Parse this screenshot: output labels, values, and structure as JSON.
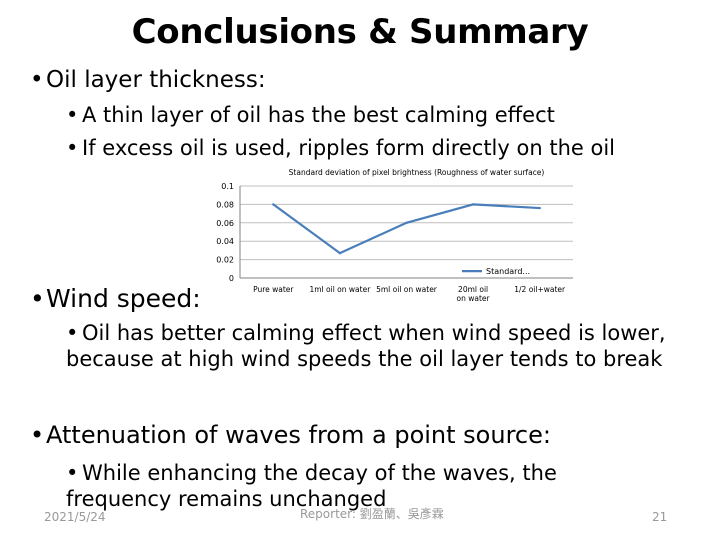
{
  "slide": {
    "title": "Conclusions & Summary",
    "bullets": {
      "oil_layer": "Oil layer thickness:",
      "thin_layer": "A thin layer of oil has the best calming effect",
      "excess_oil": "If excess oil is used, ripples form directly on the oil",
      "wind_speed": "Wind speed:",
      "calming": "Oil has better calming effect when wind speed is lower, because at high wind speeds the oil layer tends to break",
      "attenuation": "Attenuation of waves from a point source:",
      "decay": "While enhancing the decay of the waves, the frequency remains unchanged"
    },
    "bullet_glyph": "•",
    "footer": {
      "date": "2021/5/24",
      "reporter": "Reporter: 劉盈蘭、吳彥霖",
      "page": "21"
    }
  },
  "colors": {
    "line": "#4a7ebb",
    "grid": "#bfbfbf",
    "text": "#000000",
    "footer": "#999999"
  },
  "chart_data": {
    "type": "line",
    "title": "Standard deviation of pixel brightness (Roughness of water surface)",
    "categories": [
      "Pure water",
      "1ml oil on water",
      "5ml oil on water",
      "20ml oil on water",
      "1/2 oil+water"
    ],
    "series": [
      {
        "name": "Standard...",
        "values": [
          0.08,
          0.027,
          0.06,
          0.08,
          0.076
        ]
      }
    ],
    "yticks": [
      0,
      0.02,
      0.04,
      0.06,
      0.08,
      0.1
    ],
    "ylim": [
      0,
      0.1
    ],
    "grid": true,
    "legend": "right"
  }
}
